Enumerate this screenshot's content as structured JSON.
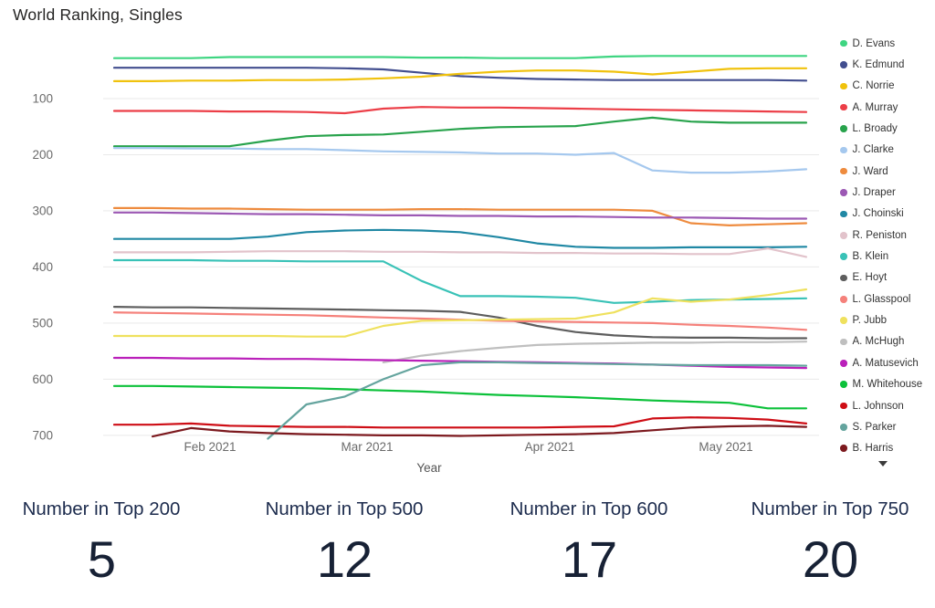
{
  "title": "World Ranking, Singles",
  "chart_data": {
    "type": "line",
    "title": "World Ranking, Singles",
    "xlabel": "Year",
    "ylabel": "",
    "y_inverted": true,
    "grid": true,
    "legend_position": "right",
    "y_ticks": [
      100,
      200,
      300,
      400,
      500,
      600,
      700
    ],
    "x_tick_labels": [
      "Feb 2021",
      "Mar 2021",
      "Apr 2021",
      "May 2021"
    ],
    "x_unit": "weekly ranking, mid-Jan 2021 to late May 2021",
    "series": [
      {
        "name": "D. Evans",
        "color": "#3ed581",
        "values": [
          28,
          28,
          28,
          26,
          26,
          26,
          26,
          26,
          27,
          27,
          28,
          28,
          28,
          25,
          24,
          24,
          24,
          24,
          24
        ]
      },
      {
        "name": "K. Edmund",
        "color": "#424e8f",
        "values": [
          45,
          45,
          45,
          45,
          45,
          45,
          46,
          48,
          54,
          60,
          63,
          65,
          66,
          67,
          67,
          67,
          67,
          67,
          68
        ]
      },
      {
        "name": "C. Norrie",
        "color": "#f0c20d",
        "values": [
          69,
          69,
          68,
          68,
          67,
          67,
          66,
          64,
          61,
          56,
          52,
          50,
          50,
          52,
          57,
          52,
          47,
          46,
          46
        ]
      },
      {
        "name": "A. Murray",
        "color": "#ec3e47",
        "values": [
          122,
          122,
          122,
          123,
          123,
          124,
          126,
          118,
          115,
          116,
          116,
          117,
          118,
          119,
          120,
          121,
          122,
          123,
          124
        ]
      },
      {
        "name": "L. Broady",
        "color": "#28a34c",
        "values": [
          185,
          185,
          185,
          185,
          175,
          167,
          165,
          164,
          159,
          154,
          151,
          150,
          149,
          141,
          134,
          141,
          143,
          143,
          143
        ]
      },
      {
        "name": "J. Clarke",
        "color": "#a5c8ee",
        "values": [
          188,
          188,
          189,
          189,
          190,
          190,
          192,
          194,
          195,
          196,
          198,
          198,
          200,
          197,
          228,
          232,
          232,
          230,
          226
        ]
      },
      {
        "name": "J. Ward",
        "color": "#ee8b3e",
        "values": [
          295,
          295,
          296,
          296,
          297,
          298,
          298,
          298,
          297,
          297,
          298,
          298,
          298,
          298,
          300,
          322,
          326,
          324,
          322
        ]
      },
      {
        "name": "J. Draper",
        "color": "#9c59b4",
        "values": [
          303,
          303,
          304,
          305,
          306,
          306,
          307,
          308,
          308,
          309,
          309,
          310,
          310,
          311,
          312,
          312,
          313,
          314,
          314
        ]
      },
      {
        "name": "J. Choinski",
        "color": "#2088a4",
        "values": [
          350,
          350,
          350,
          350,
          346,
          338,
          335,
          334,
          335,
          338,
          347,
          358,
          364,
          366,
          366,
          365,
          365,
          365,
          364
        ]
      },
      {
        "name": "R. Peniston",
        "color": "#e2c3cb",
        "values": [
          374,
          374,
          374,
          373,
          372,
          372,
          372,
          373,
          373,
          374,
          374,
          375,
          375,
          376,
          376,
          377,
          377,
          367,
          382
        ]
      },
      {
        "name": "B. Klein",
        "color": "#39c2b7",
        "values": [
          388,
          388,
          388,
          389,
          389,
          390,
          390,
          390,
          425,
          452,
          452,
          453,
          455,
          464,
          462,
          459,
          458,
          457,
          456
        ]
      },
      {
        "name": "E. Hoyt",
        "color": "#5e5e5e",
        "values": [
          471,
          472,
          472,
          473,
          474,
          475,
          476,
          477,
          478,
          480,
          490,
          505,
          516,
          522,
          525,
          526,
          526,
          527,
          527
        ]
      },
      {
        "name": "L. Glasspool",
        "color": "#f5817b",
        "values": [
          481,
          482,
          483,
          484,
          485,
          486,
          488,
          490,
          492,
          494,
          496,
          497,
          498,
          499,
          500,
          503,
          505,
          508,
          512
        ]
      },
      {
        "name": "P. Jubb",
        "color": "#efe15e",
        "values": [
          523,
          523,
          523,
          523,
          523,
          524,
          524,
          505,
          496,
          495,
          494,
          493,
          492,
          481,
          456,
          462,
          458,
          450,
          440
        ]
      },
      {
        "name": "A. McHugh",
        "color": "#bfbfbf",
        "values": [
          null,
          null,
          null,
          null,
          null,
          null,
          null,
          570,
          558,
          550,
          544,
          539,
          537,
          536,
          535,
          535,
          534,
          534,
          533
        ]
      },
      {
        "name": "A. Matusevich",
        "color": "#ba20ba",
        "values": [
          562,
          562,
          563,
          563,
          564,
          564,
          565,
          566,
          567,
          568,
          569,
          570,
          571,
          572,
          574,
          576,
          578,
          579,
          580
        ]
      },
      {
        "name": "M. Whitehouse",
        "color": "#0cc13a",
        "values": [
          612,
          612,
          613,
          614,
          615,
          616,
          618,
          620,
          622,
          625,
          628,
          630,
          632,
          635,
          638,
          640,
          642,
          652,
          652
        ]
      },
      {
        "name": "L. Johnson",
        "color": "#ce0d15",
        "values": [
          681,
          681,
          679,
          683,
          684,
          685,
          685,
          686,
          686,
          686,
          686,
          686,
          685,
          684,
          670,
          668,
          669,
          672,
          679
        ]
      },
      {
        "name": "S. Parker",
        "color": "#64a49e",
        "values": [
          null,
          null,
          null,
          null,
          706,
          645,
          631,
          600,
          575,
          570,
          570,
          571,
          572,
          573,
          574,
          575,
          575,
          575,
          576
        ]
      },
      {
        "name": "B. Harris",
        "color": "#7c191e",
        "values": [
          null,
          702,
          687,
          693,
          696,
          698,
          699,
          700,
          700,
          701,
          700,
          699,
          698,
          696,
          691,
          686,
          684,
          683,
          685
        ]
      }
    ]
  },
  "legend": {
    "more_icon": "chevron-down"
  },
  "kpis": [
    {
      "label": "Number in Top 200",
      "value": "5"
    },
    {
      "label": "Number in Top 500",
      "value": "12"
    },
    {
      "label": "Number in Top 600",
      "value": "17"
    },
    {
      "label": "Number in Top 750",
      "value": "20"
    }
  ],
  "colors": {
    "title_text": "#252423",
    "axis_text": "#6b6b6b",
    "axis_title_text": "#555555",
    "legend_text": "#333333",
    "gridline": "#e9e9e9",
    "kpi_label_text": "#1c2b4d",
    "kpi_value_text": "#172135"
  }
}
